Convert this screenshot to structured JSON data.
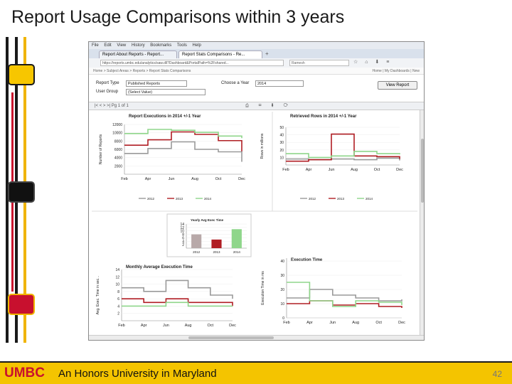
{
  "slide": {
    "title": "Report Usage Comparisons within 3 years",
    "footer_brand": "UMBC",
    "footer_tagline": "An Honors University in Maryland",
    "page_number": "42"
  },
  "browser": {
    "menu": [
      "File",
      "Edit",
      "View",
      "History",
      "Bookmarks",
      "Tools",
      "Help"
    ],
    "tabs": [
      "Report About Reports - Report...",
      "Report Stats Comparisons - Re..."
    ],
    "url": "https://reports.umbc.edu/analytics/saw.dll?Dashboard&PortalPath=%2Fshared...",
    "search_value": "Ramesh",
    "breadcrumb_left": "Home > Subject Areas > Reports > Report Stats Comparisons",
    "breadcrumb_right": "Home | My Dashboards | New"
  },
  "form": {
    "report_type_label": "Report Type",
    "report_type_value": "Published Reports",
    "choose_year_label": "Choose a Year",
    "choose_year_value": "2014",
    "user_group_label": "User Group",
    "user_group_value": "(Select Value)",
    "view_button": "View Report"
  },
  "toolbar": {
    "left": "|< < > >|  Pg 1 of 1",
    "right": "⎙ ✉ ⬇ ⟳"
  },
  "colors": {
    "series_2012": "#9a9a9a",
    "series_2013": "#b01e24",
    "series_2014": "#8fd68b"
  },
  "legend_labels": [
    "2012",
    "2013",
    "2014"
  ],
  "chart_data": [
    {
      "type": "line",
      "title": "Report Executions in 2014 +/-1 Year",
      "ylabel": "Number of Reports",
      "categories": [
        "Feb",
        "Apr",
        "Jun",
        "Aug",
        "Oct",
        "Dec"
      ],
      "yticks": [
        "2000",
        "4000",
        "6000",
        "8000",
        "10000",
        "12000"
      ],
      "ylim": [
        0,
        12000
      ],
      "series": [
        {
          "name": "2012",
          "values": [
            5000,
            6200,
            7800,
            6000,
            5400,
            3000
          ]
        },
        {
          "name": "2013",
          "values": [
            7000,
            8300,
            10200,
            9600,
            8100,
            5500
          ]
        },
        {
          "name": "2014",
          "values": [
            9800,
            10800,
            10600,
            10100,
            9200,
            8700
          ]
        }
      ]
    },
    {
      "type": "line",
      "title": "Retrieved Rows in 2014 +/-1 Year",
      "ylabel": "Rows in millions",
      "categories": [
        "Feb",
        "Apr",
        "Jun",
        "Aug",
        "Oct",
        "Dec"
      ],
      "yticks": [
        "10",
        "20",
        "30",
        "40",
        "50"
      ],
      "ylim": [
        0,
        50
      ],
      "series": [
        {
          "name": "2012",
          "values": [
            8,
            7,
            8,
            7,
            9,
            6
          ]
        },
        {
          "name": "2013",
          "values": [
            5,
            7,
            41,
            12,
            11,
            8
          ]
        },
        {
          "name": "2014",
          "values": [
            15,
            10,
            12,
            18,
            15,
            14
          ]
        }
      ]
    },
    {
      "type": "bar",
      "title": "Yearly Avg Exec Time",
      "categories": [
        "2012",
        "2013",
        "2014"
      ],
      "yticks": [
        "2",
        "4",
        "6",
        "8",
        "10",
        "12",
        "14"
      ],
      "ylim": [
        0,
        14
      ],
      "values": [
        8,
        5,
        11
      ]
    },
    {
      "type": "line",
      "title": "Monthly Average Execution Time",
      "ylabel": "Avg. Exec. Time in sec...",
      "categories": [
        "Feb",
        "Apr",
        "Jun",
        "Aug",
        "Oct",
        "Dec"
      ],
      "yticks": [
        "2",
        "4",
        "6",
        "8",
        "10",
        "12",
        "14"
      ],
      "ylim": [
        0,
        14
      ],
      "series": [
        {
          "name": "2012",
          "values": [
            9,
            8,
            11,
            9,
            7,
            6
          ]
        },
        {
          "name": "2013",
          "values": [
            6,
            5,
            6,
            5,
            5,
            4
          ]
        },
        {
          "name": "2014",
          "values": [
            4,
            4,
            5,
            4,
            4,
            4
          ]
        }
      ]
    },
    {
      "type": "line",
      "title": "Execution Time",
      "ylabel": "Execution Time in ms",
      "categories": [
        "Feb",
        "Apr",
        "Jun",
        "Aug",
        "Oct",
        "Dec"
      ],
      "yticks": [
        "0",
        "10",
        "20",
        "30",
        "40"
      ],
      "ylim": [
        0,
        42
      ],
      "series": [
        {
          "name": "2012",
          "values": [
            14,
            20,
            16,
            14,
            12,
            13
          ]
        },
        {
          "name": "2013",
          "values": [
            10,
            12,
            9,
            10,
            8,
            7
          ]
        },
        {
          "name": "2014",
          "values": [
            25,
            12,
            8,
            12,
            11,
            9
          ]
        }
      ]
    }
  ]
}
